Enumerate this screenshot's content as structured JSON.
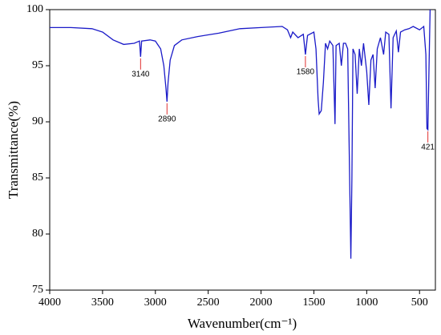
{
  "chart_data": {
    "type": "line",
    "xlabel": "Wavenumber(cm⁻¹)",
    "ylabel": "Transmittance(%)",
    "color": "#1a1ac8",
    "xlim": [
      4000,
      350
    ],
    "ylim": [
      75,
      100
    ],
    "xticks": [
      4000,
      3500,
      3000,
      2500,
      2000,
      1500,
      1000,
      500
    ],
    "yticks": [
      75,
      80,
      85,
      90,
      95,
      100
    ],
    "x": [
      4000,
      3800,
      3600,
      3500,
      3400,
      3300,
      3200,
      3150,
      3140,
      3130,
      3050,
      3000,
      2950,
      2920,
      2900,
      2890,
      2880,
      2860,
      2820,
      2750,
      2600,
      2400,
      2200,
      2000,
      1800,
      1750,
      1720,
      1700,
      1650,
      1600,
      1580,
      1560,
      1500,
      1480,
      1460,
      1450,
      1430,
      1410,
      1390,
      1370,
      1350,
      1320,
      1300,
      1290,
      1260,
      1240,
      1220,
      1200,
      1180,
      1160,
      1150,
      1140,
      1130,
      1110,
      1090,
      1070,
      1050,
      1030,
      1000,
      980,
      960,
      940,
      920,
      900,
      870,
      840,
      820,
      790,
      770,
      750,
      720,
      700,
      680,
      640,
      600,
      560,
      500,
      460,
      440,
      430,
      421,
      410,
      400
    ],
    "values": [
      98.4,
      98.4,
      98.3,
      98.0,
      97.3,
      96.9,
      97.0,
      97.2,
      95.8,
      97.2,
      97.3,
      97.2,
      96.5,
      95.0,
      93.0,
      91.8,
      93.5,
      95.5,
      96.8,
      97.3,
      97.6,
      97.9,
      98.3,
      98.4,
      98.5,
      98.2,
      97.5,
      98.0,
      97.5,
      97.8,
      96.0,
      97.7,
      98.0,
      96.5,
      92.0,
      90.7,
      91.0,
      93.5,
      97.0,
      96.5,
      97.2,
      96.8,
      89.8,
      96.8,
      97.0,
      95.0,
      97.0,
      97.0,
      96.5,
      84.0,
      77.8,
      85.0,
      96.5,
      96.0,
      92.5,
      96.5,
      95.0,
      97.0,
      94.5,
      91.5,
      95.5,
      96.0,
      93.0,
      96.5,
      97.5,
      96.0,
      98.0,
      97.8,
      91.2,
      97.5,
      98.1,
      96.2,
      98.0,
      98.2,
      98.3,
      98.5,
      98.2,
      98.5,
      96.0,
      89.4,
      89.3,
      95.0,
      100.0
    ],
    "annotations": [
      {
        "x": 3140,
        "y": 95.8,
        "text": "3140"
      },
      {
        "x": 2890,
        "y": 91.8,
        "text": "2890"
      },
      {
        "x": 1580,
        "y": 96.0,
        "text": "1580"
      },
      {
        "x": 421,
        "y": 89.3,
        "text": "421"
      }
    ]
  }
}
